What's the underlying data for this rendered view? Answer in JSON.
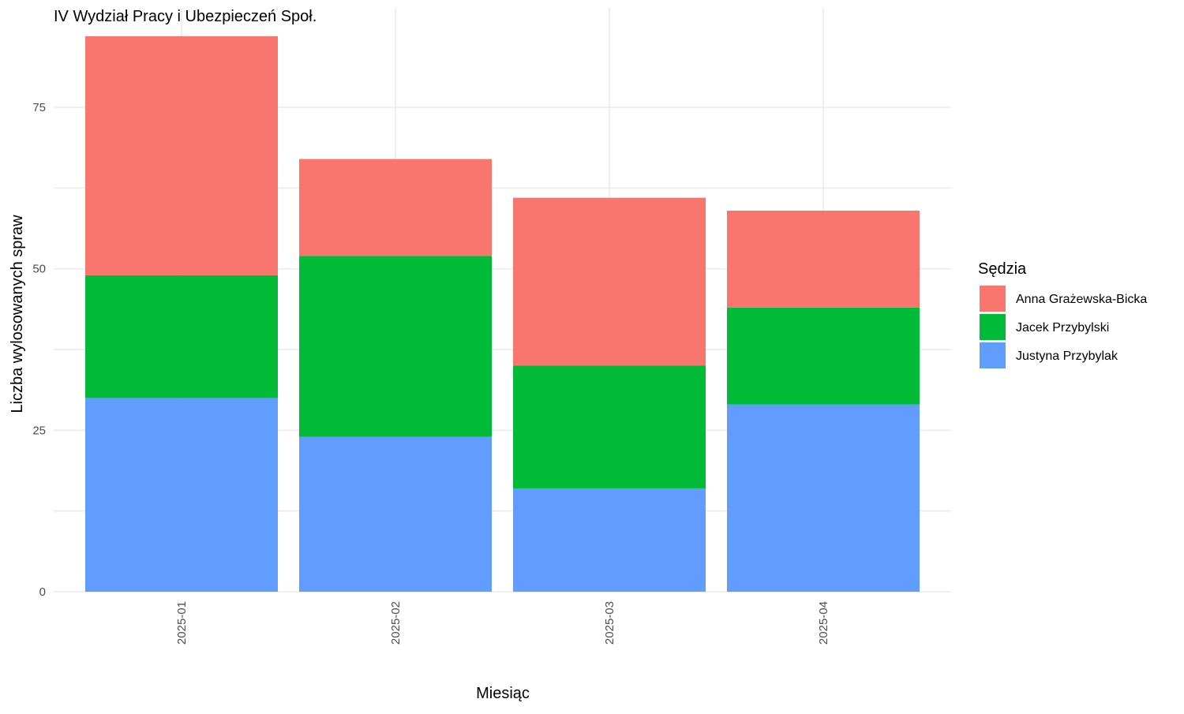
{
  "chart_data": {
    "type": "bar",
    "stacked": true,
    "title": "IV Wydział Pracy i Ubezpieczeń Społ.",
    "xlabel": "Miesiąc",
    "ylabel": "Liczba wylosowanych spraw",
    "ylim": [
      0,
      86
    ],
    "yticks": [
      0,
      25,
      50,
      75
    ],
    "grid": true,
    "legend_title": "Sędzia",
    "legend_position": "right",
    "categories": [
      "2025-01",
      "2025-02",
      "2025-03",
      "2025-04"
    ],
    "series": [
      {
        "name": "Justyna Przybylak",
        "color": "#619CFF",
        "values": [
          30,
          24,
          16,
          29
        ]
      },
      {
        "name": "Jacek Przybylski",
        "color": "#00BA38",
        "values": [
          19,
          28,
          19,
          15
        ]
      },
      {
        "name": "Anna Grażewska-Bicka",
        "color": "#F8766D",
        "values": [
          37,
          15,
          26,
          15
        ]
      }
    ],
    "legend_order": [
      "Anna Grażewska-Bicka",
      "Jacek Przybylski",
      "Justyna Przybylak"
    ]
  }
}
